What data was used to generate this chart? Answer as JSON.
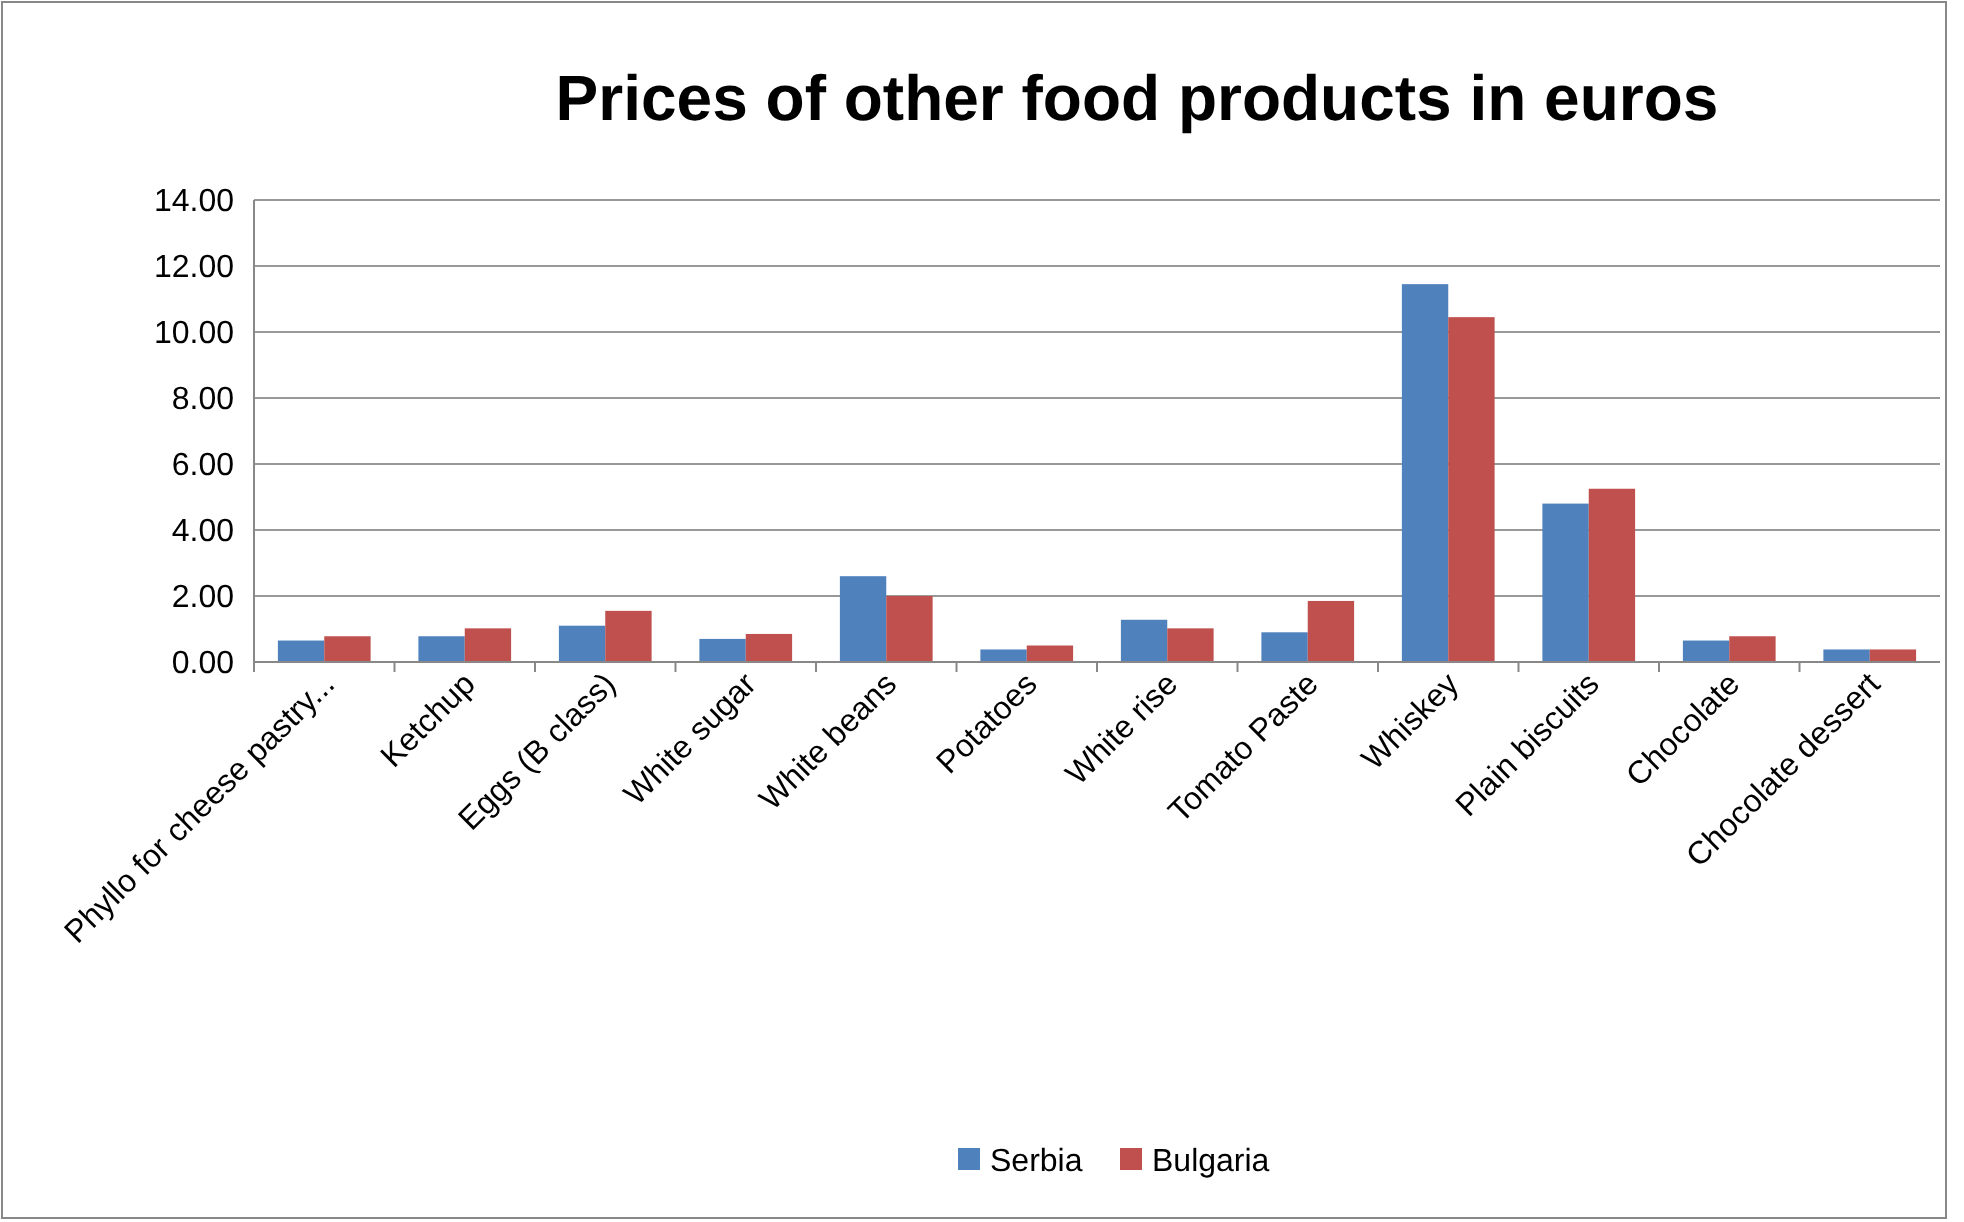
{
  "chart_data": {
    "type": "bar",
    "title": "Prices of other food products in euros",
    "categories": [
      "Phyllo for cheese pastry...",
      "Ketchup",
      "Eggs (B class)",
      "White sugar",
      "White beans",
      "Potatoes",
      "White rise",
      "Tomato Paste",
      "Whiskey",
      "Plain biscuits",
      "Chocolate",
      "Chocolate dessert"
    ],
    "series": [
      {
        "name": "Serbia",
        "color": "#4f81bd",
        "values": [
          0.65,
          0.78,
          1.1,
          0.7,
          2.6,
          0.38,
          1.28,
          0.9,
          11.45,
          4.8,
          0.65,
          0.38
        ]
      },
      {
        "name": "Bulgaria",
        "color": "#c0504d",
        "values": [
          0.78,
          1.02,
          1.55,
          0.85,
          2.0,
          0.5,
          1.02,
          1.85,
          10.45,
          5.25,
          0.78,
          0.38
        ]
      }
    ],
    "ylim": [
      0,
      14
    ],
    "yticks": [
      {
        "value": 0,
        "label": "0.00"
      },
      {
        "value": 2,
        "label": "2.00"
      },
      {
        "value": 4,
        "label": "4.00"
      },
      {
        "value": 6,
        "label": "6.00"
      },
      {
        "value": 8,
        "label": "8.00"
      },
      {
        "value": 10,
        "label": "10.00"
      },
      {
        "value": 12,
        "label": "12.00"
      },
      {
        "value": 14,
        "label": "14.00"
      }
    ],
    "grid": "y",
    "legend": "bottom"
  }
}
